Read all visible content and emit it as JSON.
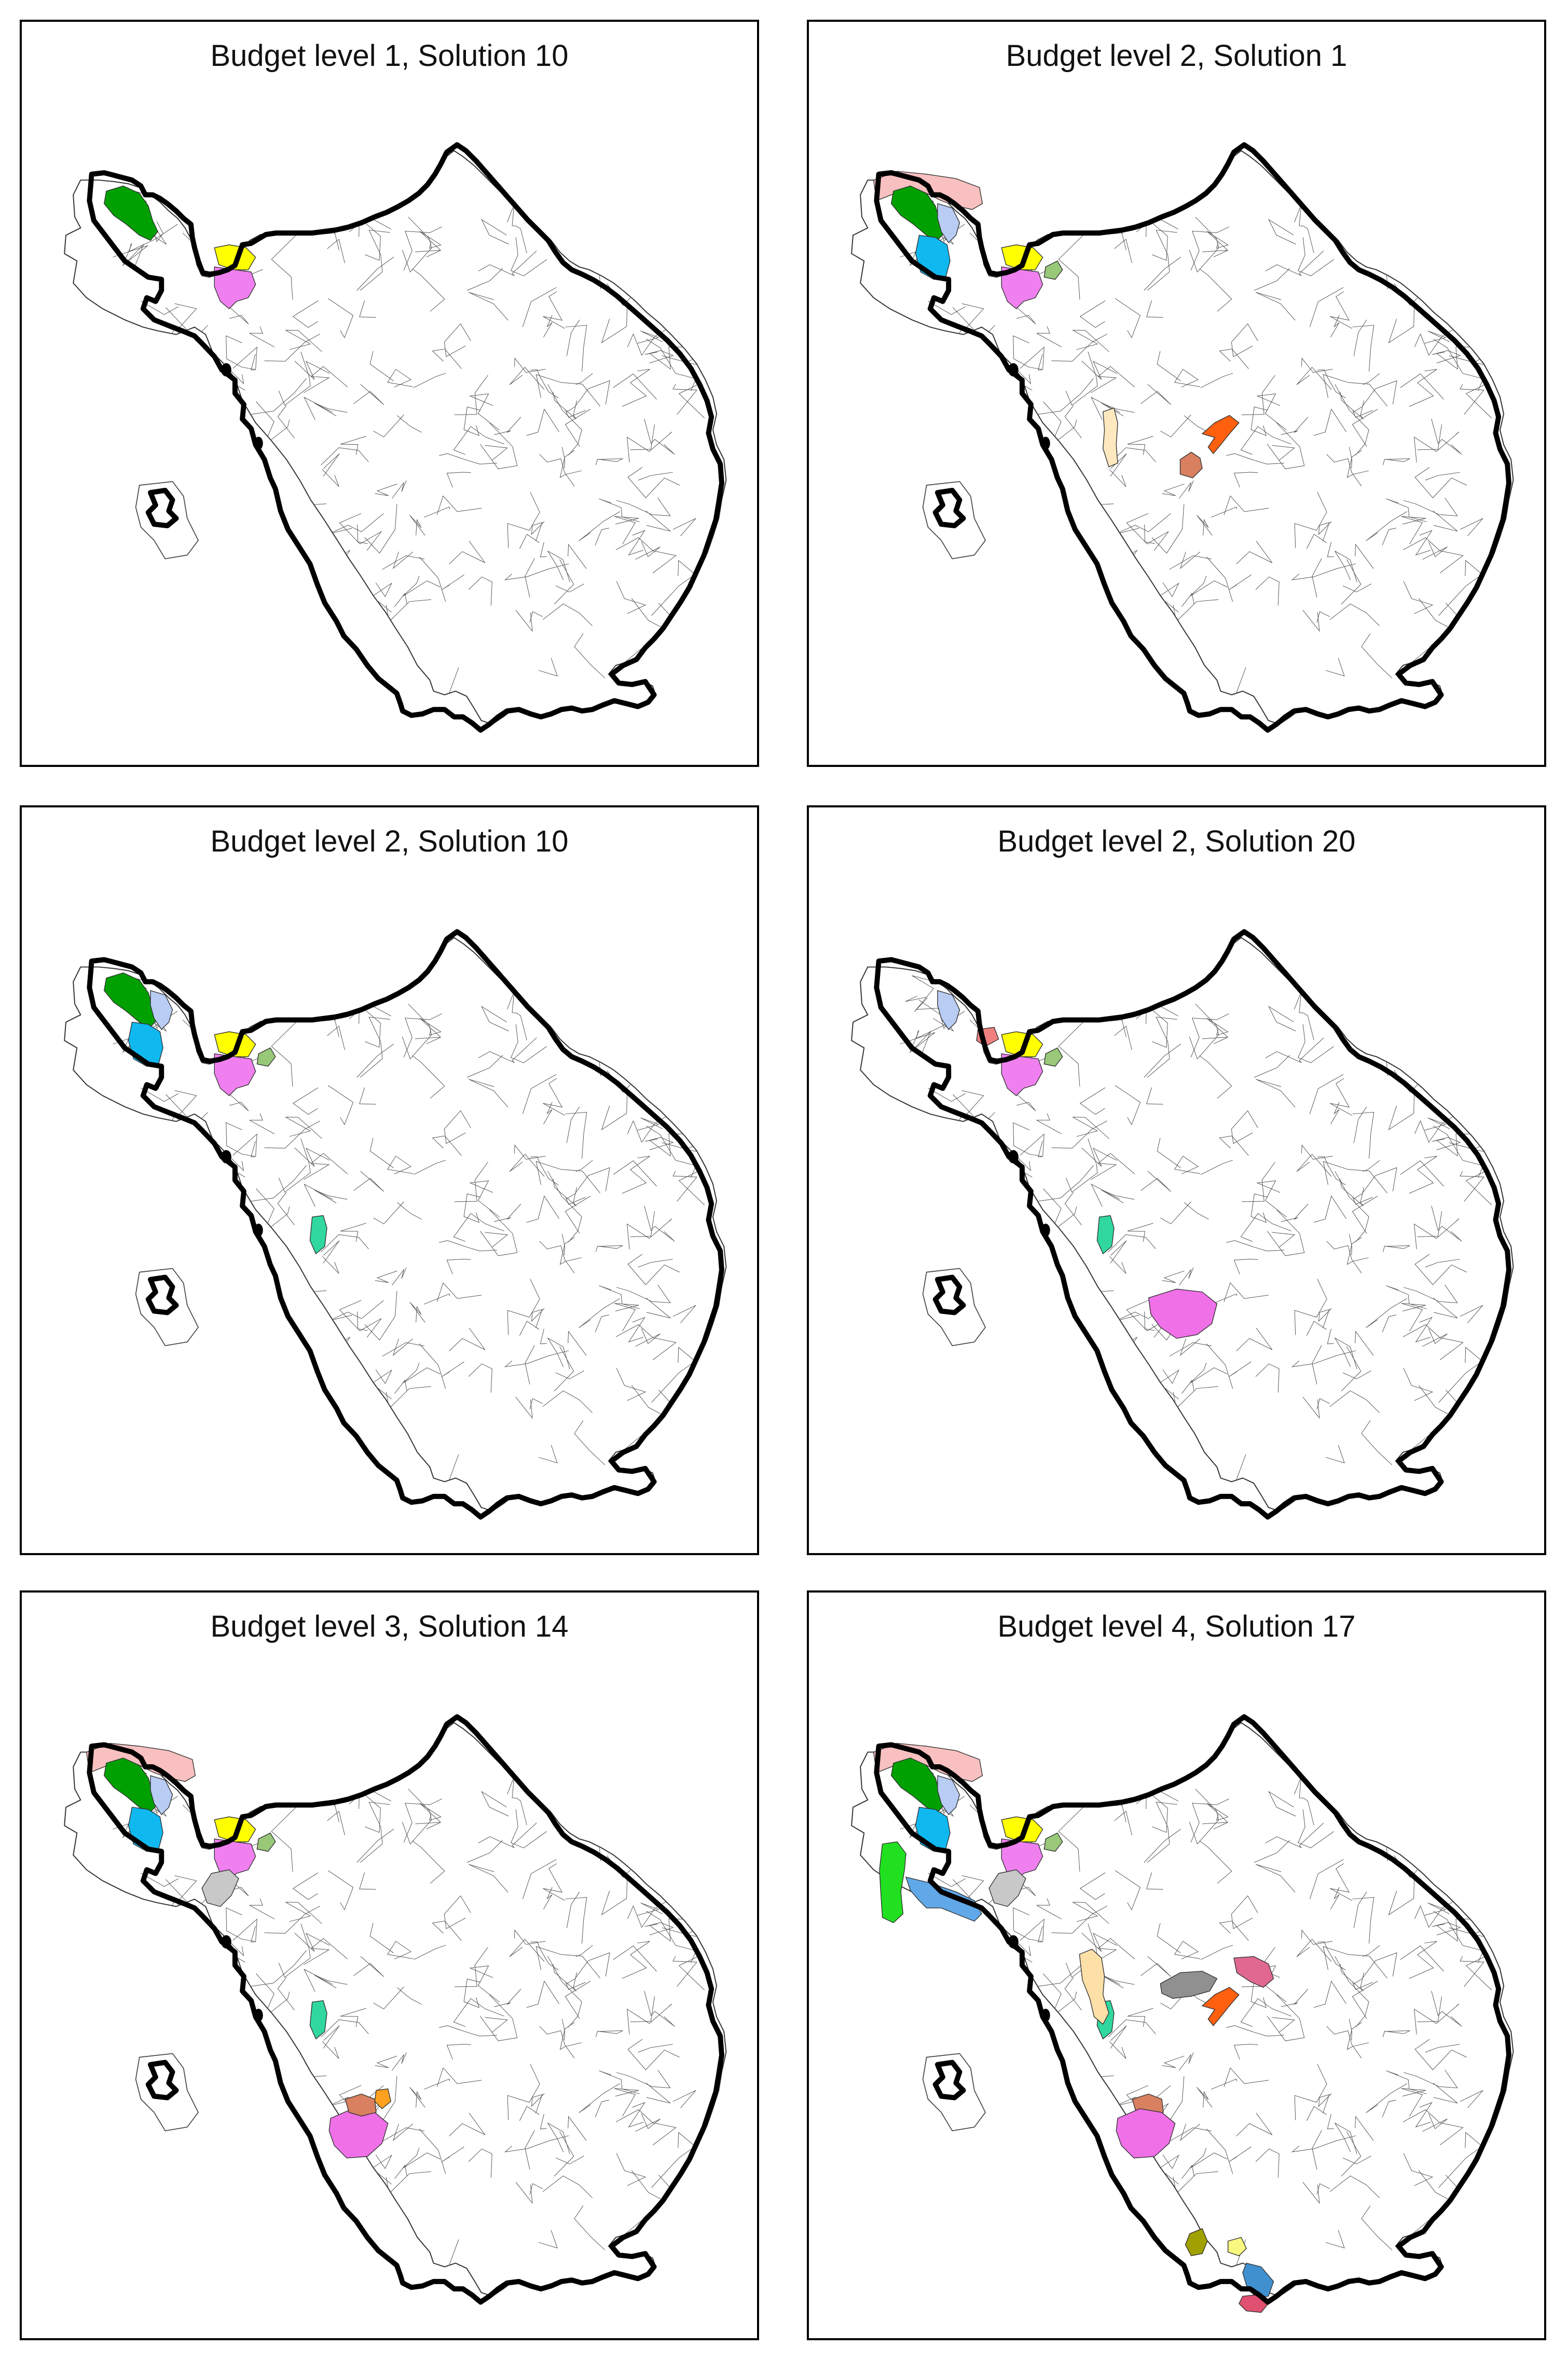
{
  "panels": [
    {
      "title": "Budget level 1, Solution 10",
      "units": [
        {
          "color": "#00a000",
          "shape": "green"
        },
        {
          "color": "#ffff00",
          "shape": "yellow"
        },
        {
          "color": "#f080f0",
          "shape": "magenta"
        }
      ]
    },
    {
      "title": "Budget level 2, Solution 1",
      "units": [
        {
          "color": "#f8c0c0",
          "shape": "pinktop"
        },
        {
          "color": "#00a000",
          "shape": "green"
        },
        {
          "color": "#b8ccf4",
          "shape": "lightblue"
        },
        {
          "color": "#10b8f0",
          "shape": "cyan"
        },
        {
          "color": "#ffff00",
          "shape": "yellow"
        },
        {
          "color": "#f080f0",
          "shape": "magenta"
        },
        {
          "color": "#98c878",
          "shape": "olivegreen"
        },
        {
          "color": "#fde8c0",
          "shape": "paleorange"
        },
        {
          "color": "#ff6010",
          "shape": "orange"
        },
        {
          "color": "#d88060",
          "shape": "salmon"
        }
      ]
    },
    {
      "title": "Budget level 2, Solution 10",
      "units": [
        {
          "color": "#00a000",
          "shape": "green"
        },
        {
          "color": "#b8ccf4",
          "shape": "lightblue"
        },
        {
          "color": "#10b8f0",
          "shape": "cyan"
        },
        {
          "color": "#ffff00",
          "shape": "yellow"
        },
        {
          "color": "#f080f0",
          "shape": "magenta"
        },
        {
          "color": "#98c878",
          "shape": "olivegreen"
        },
        {
          "color": "#30d8a0",
          "shape": "teal"
        }
      ]
    },
    {
      "title": "Budget level 2, Solution 20",
      "units": [
        {
          "color": "#b8ccf4",
          "shape": "lightblue"
        },
        {
          "color": "#f08080",
          "shape": "redsmall"
        },
        {
          "color": "#ffff00",
          "shape": "yellow"
        },
        {
          "color": "#f080f0",
          "shape": "magenta"
        },
        {
          "color": "#98c878",
          "shape": "olivegreen"
        },
        {
          "color": "#30d8a0",
          "shape": "teal"
        },
        {
          "color": "#f070e8",
          "shape": "bigmagenta"
        }
      ]
    },
    {
      "title": "Budget level 3, Solution 14",
      "units": [
        {
          "color": "#f8c0c0",
          "shape": "pinktop"
        },
        {
          "color": "#00a000",
          "shape": "green"
        },
        {
          "color": "#b8ccf4",
          "shape": "lightblue"
        },
        {
          "color": "#10b8f0",
          "shape": "cyan"
        },
        {
          "color": "#ffff00",
          "shape": "yellow"
        },
        {
          "color": "#f080f0",
          "shape": "magenta"
        },
        {
          "color": "#98c878",
          "shape": "olivegreen"
        },
        {
          "color": "#c8c8c8",
          "shape": "gray"
        },
        {
          "color": "#30d8a0",
          "shape": "teal"
        },
        {
          "color": "#f070e8",
          "shape": "bigmagenta2"
        },
        {
          "color": "#d88060",
          "shape": "salmon2"
        },
        {
          "color": "#ffa020",
          "shape": "orangesmall"
        }
      ]
    },
    {
      "title": "Budget level 4, Solution 17",
      "units": [
        {
          "color": "#f8c0c0",
          "shape": "pinktop"
        },
        {
          "color": "#00a000",
          "shape": "green"
        },
        {
          "color": "#b8ccf4",
          "shape": "lightblue"
        },
        {
          "color": "#10b8f0",
          "shape": "cyan"
        },
        {
          "color": "#ffff00",
          "shape": "yellow"
        },
        {
          "color": "#f080f0",
          "shape": "magenta"
        },
        {
          "color": "#98c878",
          "shape": "olivegreen"
        },
        {
          "color": "#c8c8c8",
          "shape": "gray"
        },
        {
          "color": "#20e020",
          "shape": "brightgreen"
        },
        {
          "color": "#60a8e8",
          "shape": "hook"
        },
        {
          "color": "#30d8a0",
          "shape": "teal"
        },
        {
          "color": "#fde0a8",
          "shape": "paleorange2"
        },
        {
          "color": "#909090",
          "shape": "darkgray"
        },
        {
          "color": "#e06890",
          "shape": "rose"
        },
        {
          "color": "#ff6010",
          "shape": "orange"
        },
        {
          "color": "#d88060",
          "shape": "salmon2"
        },
        {
          "color": "#f070e8",
          "shape": "bigmagenta2"
        },
        {
          "color": "#a0a000",
          "shape": "olive"
        },
        {
          "color": "#f8f880",
          "shape": "paleyellow"
        },
        {
          "color": "#4090d0",
          "shape": "steelblue"
        },
        {
          "color": "#e05070",
          "shape": "redpink"
        }
      ]
    }
  ]
}
